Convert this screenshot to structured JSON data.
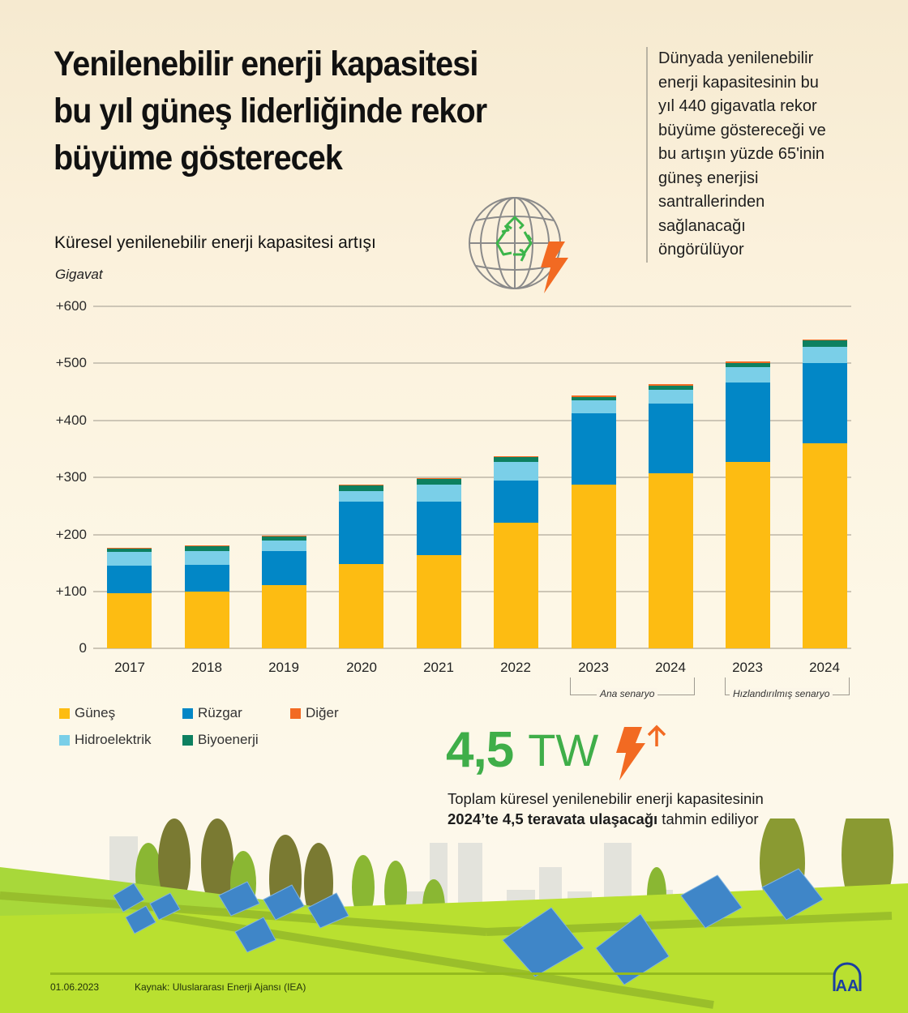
{
  "header": {
    "title_lines": [
      "Yenilenebilir enerji kapasitesi",
      "bu yıl güneş liderliğinde rekor",
      "büyüme gösterecek"
    ],
    "summary_lines": [
      "Dünyada yenilenebilir",
      "enerji kapasitesinin bu",
      "yıl 440 gigavatla rekor",
      "büyüme göstereceği ve",
      "bu artışın yüzde 65'inin",
      "güneş enerjisi",
      "santrallerinden",
      "sağlanacağı",
      "öngörülüyor"
    ]
  },
  "chart": {
    "title": "Küresel yenilenebilir enerji kapasitesi artışı",
    "unit": "Gigavat",
    "icon": "globe-recycle-lightning-icon",
    "y_ticks": [
      "+600",
      "+500",
      "+400",
      "+300",
      "+200",
      "+100",
      "0"
    ],
    "x_labels": [
      "2017",
      "2018",
      "2019",
      "2020",
      "2021",
      "2022",
      "2023",
      "2024",
      "2023",
      "2024"
    ],
    "scenario_labels": {
      "main": "Ana senaryo",
      "accelerated": "Hızlandırılmış senaryo"
    },
    "legend": [
      {
        "label": "Güneş",
        "color": "#fdbc12"
      },
      {
        "label": "Rüzgar",
        "color": "#0287c6"
      },
      {
        "label": "Diğer",
        "color": "#f26a22"
      },
      {
        "label": "Hidroelektrik",
        "color": "#7acfe8"
      },
      {
        "label": "Biyoenerji",
        "color": "#0d8060"
      }
    ]
  },
  "chart_data": {
    "type": "bar",
    "stacked": true,
    "title": "Küresel yenilenebilir enerji kapasitesi artışı",
    "xlabel": "",
    "ylabel": "Gigavat",
    "ylim": [
      0,
      600
    ],
    "grid": true,
    "legend_position": "bottom-left",
    "categories": [
      "2017",
      "2018",
      "2019",
      "2020",
      "2021",
      "2022",
      "2023 (Ana senaryo)",
      "2024 (Ana senaryo)",
      "2023 (Hızlandırılmış senaryo)",
      "2024 (Hızlandırılmış senaryo)"
    ],
    "series": [
      {
        "name": "Güneş",
        "color": "#fdbc12",
        "values": [
          97,
          99,
          111,
          148,
          163,
          220,
          287,
          307,
          327,
          360
        ]
      },
      {
        "name": "Rüzgar",
        "color": "#0287c6",
        "values": [
          48,
          48,
          60,
          110,
          95,
          74,
          125,
          122,
          139,
          140
        ]
      },
      {
        "name": "Hidroelektrik",
        "color": "#7acfe8",
        "values": [
          24,
          24,
          18,
          18,
          29,
          33,
          23,
          24,
          28,
          29
        ]
      },
      {
        "name": "Biyoenerji",
        "color": "#0d8060",
        "values": [
          7,
          8,
          7,
          10,
          10,
          9,
          6,
          8,
          7,
          11
        ]
      },
      {
        "name": "Diğer",
        "color": "#f26a22",
        "values": [
          1,
          1,
          1,
          1,
          1,
          1,
          2,
          2,
          2,
          2
        ]
      }
    ],
    "totals": [
      177,
      180,
      197,
      287,
      298,
      337,
      443,
      463,
      503,
      542
    ]
  },
  "stat": {
    "value": "4,5",
    "unit": "TW",
    "desc_line1": "Toplam küresel yenilenebilir enerji kapasitesinin",
    "desc_bold": "2024’te 4,5 teravata ulaşacağı",
    "desc_rest": " tahmin ediliyor"
  },
  "footer": {
    "date": "01.06.2023",
    "source": "Kaynak: Uluslararası Enerji Ajansı (IEA)",
    "logo": "AA"
  }
}
